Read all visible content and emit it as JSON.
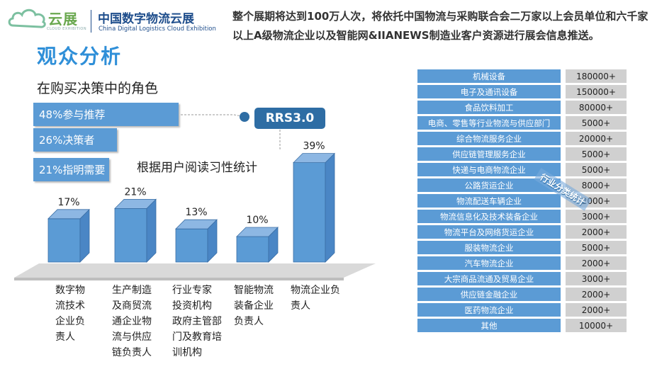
{
  "header": {
    "logo_cn": "云展",
    "logo_en": "CLOUD EXHIBITION",
    "title_cn": "中国数字物流云展",
    "title_en": "China Digital Logistics Cloud Exhibition",
    "intro": "整个展期将达到100万人次，将依托中国物流与采购联合会二万家以上会员单位和六千家以上A级物流企业以及智能网&IIANEWS制造业客户资源进行展会信息推送。"
  },
  "page_title": "观众分析",
  "roles": {
    "title": "在购买决策中的角色",
    "items": [
      "48%参与推荐",
      "26%决策者",
      "21%指明需要"
    ]
  },
  "rrs_badge": "RRS3.0",
  "colors": {
    "bar": "#5b9bd5",
    "bar_dark": "#2e6da4",
    "table_cat": "#5b9bd5",
    "table_val": "#d0d0d0"
  },
  "chart_data": {
    "type": "bar",
    "title": "根据用户阅读习性统计",
    "categories": [
      "数字物流技术企业负责人",
      "生产制造及商贸流通企业物流与供应链负责人",
      "行业专家投资机构政府主管部门及教育培训机构",
      "智能物流装备企业负责人",
      "物流企业负责人"
    ],
    "category_lines": [
      [
        "数字物",
        "流技术",
        "企业负",
        "责人"
      ],
      [
        "生产制造",
        "及商贸流",
        "通企业物",
        "流与供应",
        "链负责人"
      ],
      [
        "行业专家",
        "投资机构",
        "政府主管部",
        "门及教育培",
        "训机构"
      ],
      [
        "智能物流",
        "装备企业",
        "负责人"
      ],
      [
        "物流企业负",
        "责人"
      ]
    ],
    "values": [
      17,
      21,
      13,
      10,
      39
    ],
    "value_labels": [
      "17%",
      "21%",
      "13%",
      "10%",
      "39%"
    ],
    "ylim": [
      0,
      45
    ]
  },
  "industry_table": {
    "stamp": "行业分类统计",
    "rows": [
      {
        "name": "机械设备",
        "value": "180000+"
      },
      {
        "name": "电子及通讯设备",
        "value": "150000+"
      },
      {
        "name": "食品饮料加工",
        "value": "80000+"
      },
      {
        "name": "电商、零售等行业物流与供应部门",
        "value": "5000+"
      },
      {
        "name": "综合物流服务企业",
        "value": "20000+"
      },
      {
        "name": "供应链管理服务企业",
        "value": "5000+"
      },
      {
        "name": "快递与电商物流企业",
        "value": "5000+"
      },
      {
        "name": "公路货运企业",
        "value": "8000+"
      },
      {
        "name": "物流配送车辆企业",
        "value": "2000+"
      },
      {
        "name": "物流信息化及技术装备企业",
        "value": "3000+"
      },
      {
        "name": "物流平台及网络货运企业",
        "value": "2000+"
      },
      {
        "name": "服装物流企业",
        "value": "5000+"
      },
      {
        "name": "汽车物流企业",
        "value": "2000+"
      },
      {
        "name": "大宗商品流通及贸易企业",
        "value": "3000+"
      },
      {
        "name": "供应链金融企业",
        "value": "2000+"
      },
      {
        "name": "医药物流企业",
        "value": "2000+"
      },
      {
        "name": "其他",
        "value": "10000+"
      }
    ]
  }
}
